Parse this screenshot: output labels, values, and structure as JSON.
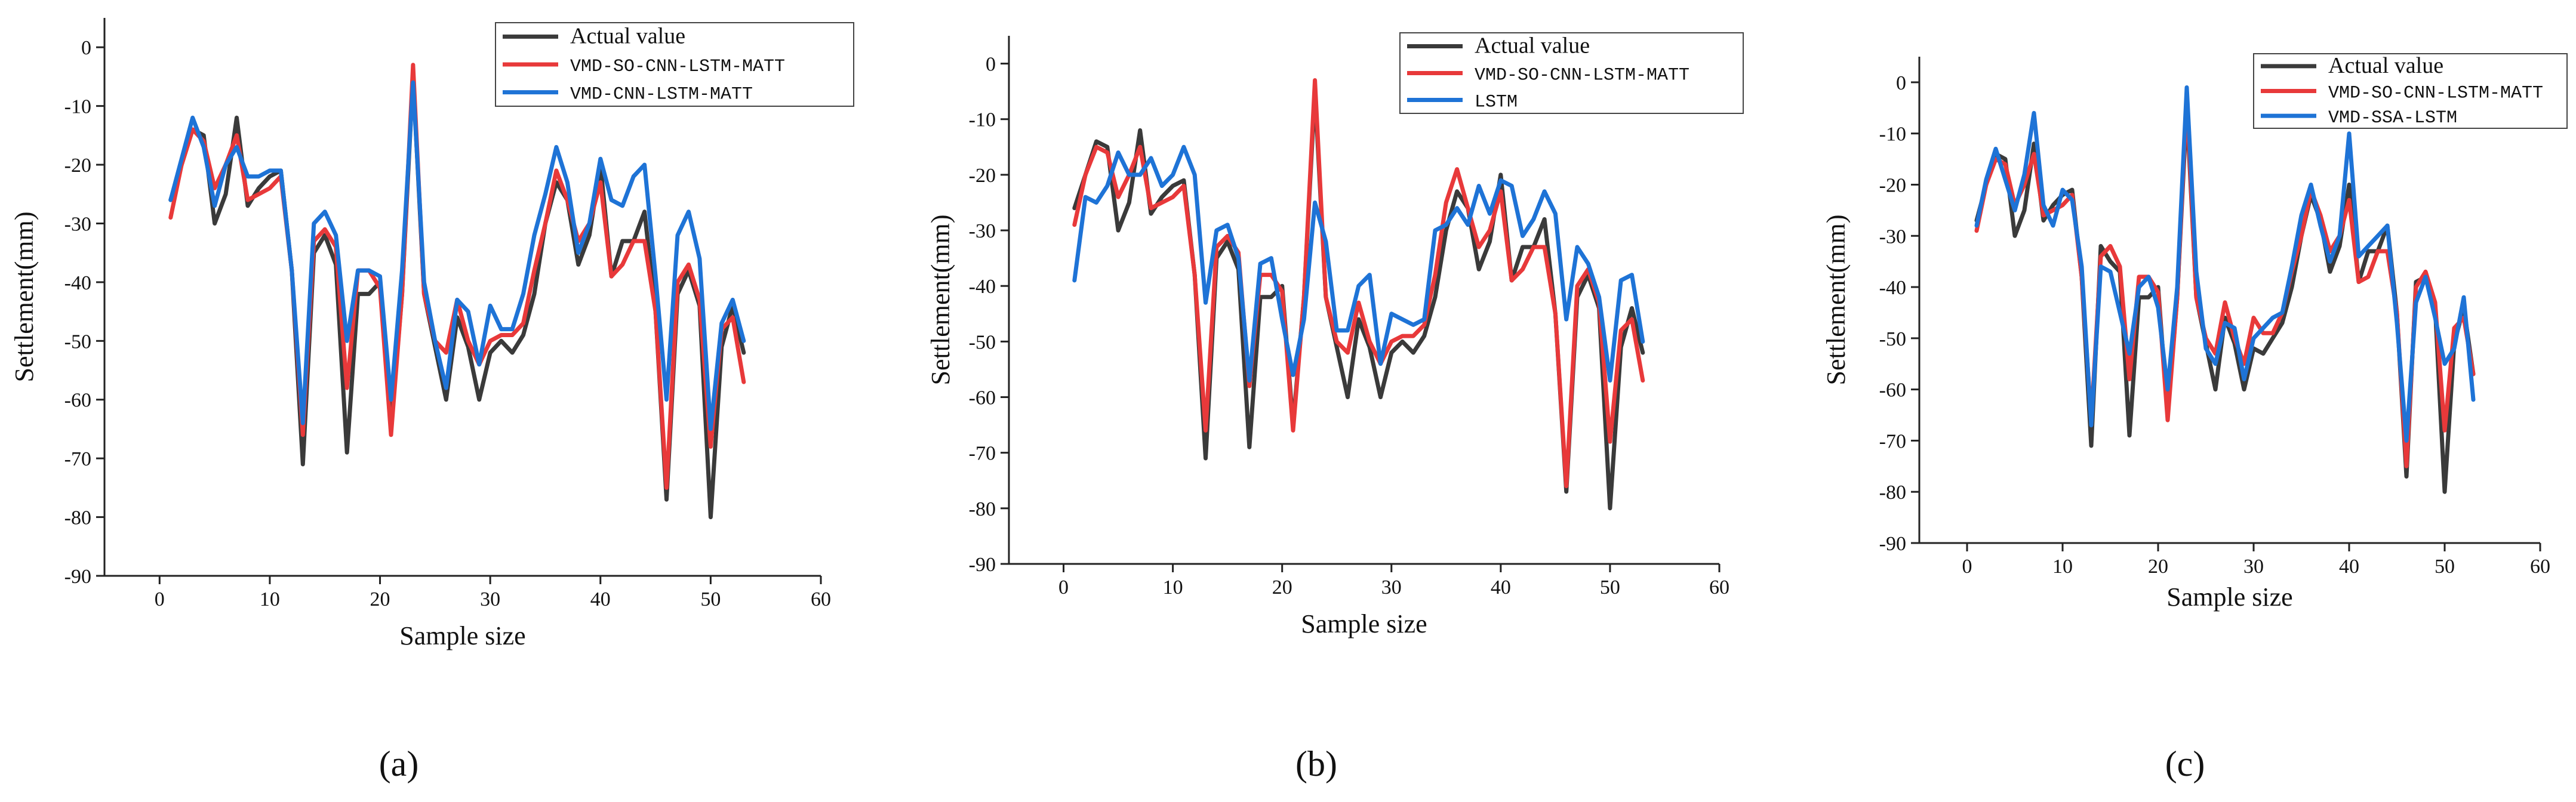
{
  "figure": {
    "panel_labels": [
      "(a)",
      "(b)",
      "(c)"
    ]
  },
  "chart_data": [
    {
      "type": "line",
      "panel": "a",
      "xlabel": "Sample size",
      "ylabel": "Settlement(mm)",
      "xlim": [
        -5,
        60
      ],
      "ylim": [
        -90,
        5
      ],
      "xticks": [
        0,
        10,
        20,
        30,
        40,
        50,
        60
      ],
      "yticks": [
        0,
        -10,
        -20,
        -30,
        -40,
        -50,
        -60,
        -70,
        -80,
        -90
      ],
      "legend_position": "top-right",
      "x": [
        1,
        2,
        3,
        4,
        5,
        6,
        7,
        8,
        9,
        10,
        11,
        12,
        13,
        14,
        15,
        16,
        17,
        18,
        19,
        20,
        21,
        22,
        23,
        24,
        25,
        26,
        27,
        28,
        29,
        30,
        31,
        32,
        33,
        34,
        35,
        36,
        37,
        38,
        39,
        40,
        41,
        42,
        43,
        44,
        45,
        46,
        47,
        48,
        49,
        50,
        51,
        52,
        53
      ],
      "series": [
        {
          "name": "Actual value",
          "color": "#3a3a3a",
          "values": [
            -26,
            -20,
            -14,
            -15,
            -30,
            -25,
            -12,
            -27,
            -24,
            -22,
            -21,
            -38,
            -71,
            -35,
            -32,
            -37,
            -69,
            -42,
            -42,
            -40,
            -65,
            -42,
            -5,
            -42,
            -51,
            -60,
            -46,
            -51,
            -60,
            -52,
            -50,
            -52,
            -49,
            -42,
            -30,
            -23,
            -26,
            -37,
            -32,
            -20,
            -39,
            -33,
            -33,
            -28,
            -45,
            -77,
            -42,
            -38,
            -44,
            -80,
            -51,
            -44,
            -52
          ]
        },
        {
          "name": "VMD-SO-CNN-LSTM-MATT",
          "color": "#e8393a",
          "values": [
            -29,
            -20,
            -14,
            -16,
            -24,
            -20,
            -15,
            -26,
            -25,
            -24,
            -22,
            -38,
            -66,
            -33,
            -31,
            -34,
            -58,
            -38,
            -38,
            -41,
            -66,
            -42,
            -3,
            -42,
            -50,
            -52,
            -43,
            -50,
            -54,
            -50,
            -49,
            -49,
            -47,
            -38,
            -30,
            -21,
            -26,
            -33,
            -30,
            -23,
            -39,
            -37,
            -33,
            -33,
            -45,
            -75,
            -40,
            -37,
            -43,
            -68,
            -48,
            -46,
            -57
          ]
        },
        {
          "name": "VMD-CNN-LSTM-MATT",
          "color": "#1e73d6",
          "values": [
            -26,
            -19,
            -12,
            -17,
            -27,
            -20,
            -17,
            -22,
            -22,
            -21,
            -21,
            -38,
            -64,
            -30,
            -28,
            -32,
            -50,
            -38,
            -38,
            -39,
            -60,
            -38,
            -6,
            -40,
            -50,
            -58,
            -43,
            -45,
            -54,
            -44,
            -48,
            -48,
            -42,
            -32,
            -25,
            -17,
            -23,
            -35,
            -30,
            -19,
            -26,
            -27,
            -22,
            -20,
            -39,
            -60,
            -32,
            -28,
            -36,
            -65,
            -47,
            -43,
            -50
          ]
        }
      ]
    },
    {
      "type": "line",
      "panel": "b",
      "xlabel": "Sample size",
      "ylabel": "Settlement(mm)",
      "xlim": [
        -5,
        60
      ],
      "ylim": [
        -90,
        5
      ],
      "xticks": [
        0,
        10,
        20,
        30,
        40,
        50,
        60
      ],
      "yticks": [
        0,
        -10,
        -20,
        -30,
        -40,
        -50,
        -60,
        -70,
        -80,
        -90
      ],
      "legend_position": "top-right",
      "x": [
        1,
        2,
        3,
        4,
        5,
        6,
        7,
        8,
        9,
        10,
        11,
        12,
        13,
        14,
        15,
        16,
        17,
        18,
        19,
        20,
        21,
        22,
        23,
        24,
        25,
        26,
        27,
        28,
        29,
        30,
        31,
        32,
        33,
        34,
        35,
        36,
        37,
        38,
        39,
        40,
        41,
        42,
        43,
        44,
        45,
        46,
        47,
        48,
        49,
        50,
        51,
        52,
        53
      ],
      "series": [
        {
          "name": "Actual value",
          "color": "#3a3a3a",
          "values": [
            -26,
            -20,
            -14,
            -15,
            -30,
            -25,
            -12,
            -27,
            -24,
            -22,
            -21,
            -38,
            -71,
            -35,
            -32,
            -37,
            -69,
            -42,
            -42,
            -40,
            -65,
            -42,
            -5,
            -42,
            -51,
            -60,
            -46,
            -51,
            -60,
            -52,
            -50,
            -52,
            -49,
            -42,
            -30,
            -23,
            -26,
            -37,
            -32,
            -20,
            -39,
            -33,
            -33,
            -28,
            -45,
            -77,
            -42,
            -38,
            -44,
            -80,
            -51,
            -44,
            -52
          ]
        },
        {
          "name": "VMD-SO-CNN-LSTM-MATT",
          "color": "#e8393a",
          "values": [
            -29,
            -20,
            -15,
            -16,
            -24,
            -20,
            -15,
            -26,
            -25,
            -24,
            -22,
            -38,
            -66,
            -33,
            -31,
            -34,
            -58,
            -38,
            -38,
            -41,
            -66,
            -42,
            -3,
            -42,
            -50,
            -52,
            -43,
            -50,
            -54,
            -50,
            -49,
            -49,
            -47,
            -38,
            -25,
            -19,
            -26,
            -33,
            -30,
            -23,
            -39,
            -37,
            -33,
            -33,
            -45,
            -76,
            -40,
            -37,
            -43,
            -68,
            -48,
            -46,
            -57
          ]
        },
        {
          "name": "LSTM",
          "color": "#1e73d6",
          "values": [
            -39,
            -24,
            -25,
            -22,
            -16,
            -20,
            -20,
            -17,
            -22,
            -20,
            -15,
            -20,
            -43,
            -30,
            -29,
            -35,
            -57,
            -36,
            -35,
            -46,
            -56,
            -46,
            -25,
            -32,
            -48,
            -48,
            -40,
            -38,
            -54,
            -45,
            -46,
            -47,
            -46,
            -30,
            -29,
            -26,
            -29,
            -22,
            -27,
            -21,
            -22,
            -31,
            -28,
            -23,
            -27,
            -46,
            -33,
            -36,
            -42,
            -57,
            -39,
            -38,
            -50
          ]
        }
      ]
    },
    {
      "type": "line",
      "panel": "c",
      "xlabel": "Sample size",
      "ylabel": "Settlement(mm)",
      "xlim": [
        -5,
        60
      ],
      "ylim": [
        -90,
        5
      ],
      "xticks": [
        0,
        10,
        20,
        30,
        40,
        50,
        60
      ],
      "yticks": [
        0,
        -10,
        -20,
        -30,
        -40,
        -50,
        -60,
        -70,
        -80,
        -90
      ],
      "legend_position": "top-right",
      "x": [
        1,
        2,
        3,
        4,
        5,
        6,
        7,
        8,
        9,
        10,
        11,
        12,
        13,
        14,
        15,
        16,
        17,
        18,
        19,
        20,
        21,
        22,
        23,
        24,
        25,
        26,
        27,
        28,
        29,
        30,
        31,
        32,
        33,
        34,
        35,
        36,
        37,
        38,
        39,
        40,
        41,
        42,
        43,
        44,
        45,
        46,
        47,
        48,
        49,
        50,
        51,
        52,
        53
      ],
      "series": [
        {
          "name": "Actual value",
          "color": "#3a3a3a",
          "values": [
            -27,
            -20,
            -14,
            -15,
            -30,
            -25,
            -12,
            -27,
            -24,
            -22,
            -21,
            -38,
            -71,
            -32,
            -35,
            -37,
            -69,
            -42,
            -42,
            -40,
            -65,
            -42,
            -5,
            -42,
            -51,
            -60,
            -46,
            -51,
            -60,
            -52,
            -53,
            -50,
            -47,
            -40,
            -30,
            -22,
            -27,
            -37,
            -32,
            -20,
            -39,
            -33,
            -33,
            -28,
            -45,
            -77,
            -39,
            -38,
            -44,
            -80,
            -51,
            -44,
            -57
          ]
        },
        {
          "name": "VMD-SO-CNN-LSTM-MATT",
          "color": "#e8393a",
          "values": [
            -29,
            -20,
            -15,
            -16,
            -24,
            -20,
            -14,
            -26,
            -25,
            -24,
            -22,
            -38,
            -66,
            -34,
            -32,
            -36,
            -58,
            -38,
            -38,
            -41,
            -66,
            -42,
            -3,
            -42,
            -50,
            -53,
            -43,
            -50,
            -55,
            -46,
            -49,
            -49,
            -45,
            -37,
            -30,
            -21,
            -26,
            -33,
            -30,
            -23,
            -39,
            -38,
            -33,
            -33,
            -45,
            -75,
            -40,
            -37,
            -43,
            -68,
            -48,
            -46,
            -57
          ]
        },
        {
          "name": "VMD-SSA-LSTM",
          "color": "#1e73d6",
          "values": [
            -28,
            -19,
            -13,
            -19,
            -25,
            -18,
            -6,
            -24,
            -28,
            -21,
            -23,
            -36,
            -67,
            -36,
            -37,
            -45,
            -53,
            -40,
            -38,
            -44,
            -60,
            -40,
            -1,
            -37,
            -52,
            -55,
            -47,
            -48,
            -58,
            -50,
            -48,
            -46,
            -45,
            -36,
            -26,
            -20,
            -28,
            -35,
            -30,
            -10,
            -34,
            -32,
            -30,
            -28,
            -47,
            -70,
            -43,
            -38,
            -46,
            -55,
            -52,
            -42,
            -62
          ]
        }
      ]
    }
  ]
}
